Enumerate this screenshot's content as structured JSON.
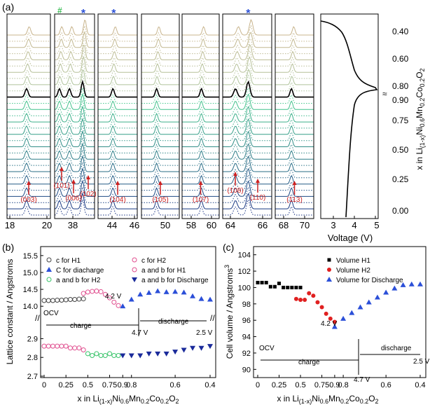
{
  "colors": {
    "frame": "#000000",
    "hkl_label": "#cc2222",
    "star": "#2a4fd6",
    "hash": "#3fbf5a",
    "h1": "#000000",
    "h2": "#e02020",
    "discharge": "#2b4fd8",
    "green": "#39c46a",
    "pink": "#e04d8e",
    "navy": "#1a2a9a",
    "black_trace": "#000000"
  },
  "panel_a": {
    "label": "(a)",
    "voltage_axis_label": "Voltage (V)",
    "voltage_ticks": [
      "3",
      "4",
      "5"
    ],
    "x_axis_label": "x in Li(1-x)Ni0.6Mn0.2Co0.2O2",
    "x_ticks_top": [
      "0.40",
      "0.60",
      "0.80"
    ],
    "x_ticks_bottom": [
      "0.90",
      "0.75",
      "0.50",
      "0.25",
      "0.00"
    ],
    "windows": [
      {
        "ticks": [
          "18",
          "20"
        ],
        "hkl": "(003)",
        "star": false,
        "hash": false
      },
      {
        "ticks": [
          "38"
        ],
        "hkl": "(101)",
        "hkl2": "(006)",
        "hkl3": "(102)",
        "star": true,
        "hash": true
      },
      {
        "ticks": [
          "44",
          "46"
        ],
        "hkl": "(104)",
        "star": true,
        "hash": false
      },
      {
        "ticks": [
          "50"
        ],
        "hkl": "(105)",
        "star": false,
        "hash": false
      },
      {
        "ticks": [
          "58",
          "60"
        ],
        "hkl": "(107)",
        "star": false,
        "hash": false
      },
      {
        "ticks": [
          "64",
          "66"
        ],
        "hkl": "(108)",
        "hkl2": "(110)",
        "star": true,
        "hash": false
      },
      {
        "ticks": [
          "68",
          "70"
        ],
        "hkl": "(113)",
        "star": false,
        "hash": false
      }
    ],
    "star_symbol": "*",
    "hash_symbol": "#"
  },
  "chart_data": [
    {
      "type": "line",
      "title": "(b)",
      "ylabel": "Lattice constant / Angstroms",
      "xlabel": "x in Li(1-x)Ni0.6Mn0.2Co0.2O2",
      "x_tick_labels": [
        "0",
        "0.25",
        "0.5",
        "0.75",
        "0.9",
        "0.8",
        "0.6",
        "0.4"
      ],
      "y_tick_labels_top": [
        "14.0",
        "14.5",
        "15.0",
        "15.5"
      ],
      "y_tick_labels_bottom": [
        "2.7",
        "2.8",
        "2.9"
      ],
      "legend": [
        "c for H1",
        "C for diacharge",
        "a and b for H2",
        "c for H2",
        "a and b for H1",
        "a and b for Discharge"
      ],
      "annotations": [
        "OCV",
        "charge",
        "4.2 V",
        "4.7 V",
        "discharge",
        "2.5 V"
      ],
      "series": [
        {
          "name": "c for H1",
          "x": [
            0.0,
            0.05,
            0.1,
            0.15,
            0.2,
            0.25,
            0.3,
            0.35,
            0.4,
            0.45
          ],
          "values": [
            14.17,
            14.17,
            14.17,
            14.18,
            14.18,
            14.19,
            14.2,
            14.2,
            14.21,
            14.22
          ]
        },
        {
          "name": "c for H2",
          "x": [
            0.45,
            0.5,
            0.55,
            0.6,
            0.65,
            0.7,
            0.75,
            0.8,
            0.85
          ],
          "values": [
            14.38,
            14.42,
            14.44,
            14.45,
            14.43,
            14.35,
            14.25,
            14.12,
            14.02
          ]
        },
        {
          "name": "C for diacharge",
          "x": [
            0.9,
            1.0,
            1.1,
            1.2,
            1.3,
            1.4,
            1.5,
            1.6,
            1.7,
            1.8,
            1.9
          ],
          "values": [
            14.0,
            14.2,
            14.35,
            14.4,
            14.45,
            14.42,
            14.43,
            14.41,
            14.3,
            14.22,
            14.2
          ]
        },
        {
          "name": "a and b for H1",
          "x": [
            0.0,
            0.05,
            0.1,
            0.15,
            0.2,
            0.25,
            0.3,
            0.35,
            0.4,
            0.45
          ],
          "values": [
            2.86,
            2.86,
            2.86,
            2.86,
            2.86,
            2.86,
            2.85,
            2.85,
            2.85,
            2.84
          ]
        },
        {
          "name": "a and b for H2",
          "x": [
            0.5,
            0.55,
            0.6,
            0.65,
            0.7,
            0.75,
            0.8,
            0.85
          ],
          "values": [
            2.82,
            2.81,
            2.82,
            2.81,
            2.81,
            2.82,
            2.81,
            2.81
          ]
        },
        {
          "name": "a and b for Discharge",
          "x": [
            0.9,
            1.0,
            1.1,
            1.2,
            1.3,
            1.4,
            1.5,
            1.6,
            1.7,
            1.8,
            1.9
          ],
          "values": [
            2.81,
            2.81,
            2.81,
            2.82,
            2.82,
            2.82,
            2.83,
            2.84,
            2.85,
            2.85,
            2.86
          ]
        }
      ]
    },
    {
      "type": "scatter",
      "title": "(c)",
      "ylabel": "Cell volume / Angstroms3",
      "xlabel": "x in Li(1-x)Ni0.6Mn0.2Co0.2O2",
      "x_tick_labels": [
        "0",
        "0.25",
        "0.5",
        "0.75",
        "0.9",
        "0.8",
        "0.6",
        "0.4"
      ],
      "y_tick_labels": [
        "90",
        "92",
        "94",
        "96",
        "98",
        "100",
        "102",
        "104"
      ],
      "ylim": [
        89,
        105
      ],
      "legend": [
        "Volume H1",
        "Volume H2",
        "Volume for Discharge"
      ],
      "annotations": [
        "OCV",
        "charge",
        "4.2 V",
        "4.7 V",
        "discharge",
        "2.5 V"
      ],
      "series": [
        {
          "name": "Volume H1",
          "x": [
            0.0,
            0.05,
            0.1,
            0.15,
            0.2,
            0.25,
            0.3,
            0.35,
            0.4,
            0.45,
            0.5
          ],
          "values": [
            100.6,
            100.6,
            100.6,
            100.1,
            100.1,
            100.5,
            100.0,
            100.0,
            100.0,
            100.0,
            100.0
          ]
        },
        {
          "name": "Volume H2",
          "x": [
            0.45,
            0.5,
            0.55,
            0.6,
            0.65,
            0.7,
            0.75,
            0.8,
            0.85,
            0.9
          ],
          "values": [
            98.6,
            98.5,
            98.5,
            99.3,
            99.0,
            98.2,
            97.6,
            96.8,
            96.2,
            95.8
          ]
        },
        {
          "name": "Volume for Discharge",
          "x": [
            0.9,
            1.0,
            1.1,
            1.2,
            1.3,
            1.4,
            1.5,
            1.6,
            1.7,
            1.8,
            1.9
          ],
          "values": [
            95.2,
            96.2,
            96.9,
            97.6,
            98.2,
            98.8,
            99.4,
            99.9,
            100.3,
            100.4,
            100.4
          ]
        }
      ]
    }
  ]
}
